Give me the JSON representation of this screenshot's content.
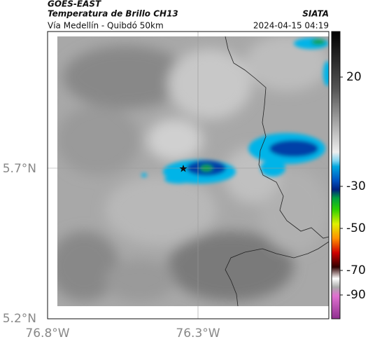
{
  "header": {
    "title": "GOES-EAST",
    "subtitle": "Temperatura de Brillo CH13",
    "route": "Vía Medellín - Quibdó 50km",
    "source": "SIATA",
    "timestamp": "2024-04-15 04:19"
  },
  "map": {
    "lat_labels": [
      "5.7°N",
      "5.2°N"
    ],
    "lon_labels": [
      "76.8°W",
      "76.3°W"
    ]
  },
  "colorbar": {
    "ticks": [
      "20",
      "-30",
      "-50",
      "-70",
      "-90"
    ]
  }
}
